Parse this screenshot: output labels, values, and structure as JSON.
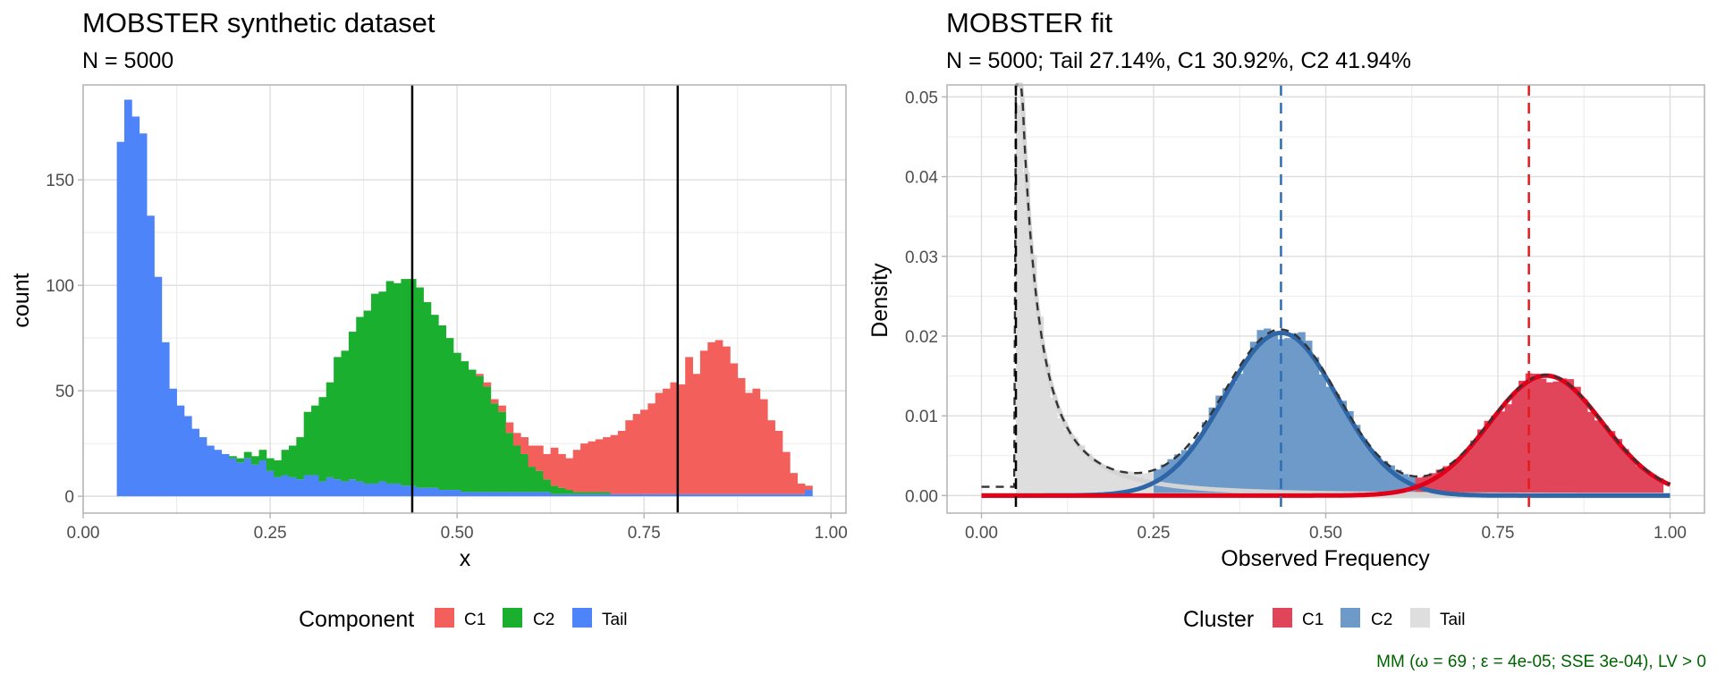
{
  "chart_data": [
    {
      "type": "bar",
      "title": "MOBSTER synthetic dataset",
      "subtitle": "N = 5000",
      "xlabel": "x",
      "ylabel": "count",
      "xlim": [
        0,
        1.02
      ],
      "ylim": [
        -8,
        195
      ],
      "xticks": [
        0,
        0.25,
        0.5,
        0.75,
        1
      ],
      "xtick_labels": [
        "0.00",
        "0.25",
        "0.50",
        "0.75",
        "1.00"
      ],
      "yticks": [
        0,
        50,
        100,
        150
      ],
      "ytick_labels": [
        "0",
        "50",
        "100",
        "150"
      ],
      "bin_width": 0.01,
      "legend_title": "Component",
      "legend_position": "bottom",
      "vlines": [
        0.44,
        0.795
      ],
      "series": [
        {
          "name": "C1",
          "color": "#F35F5B",
          "x": [
            0.53,
            0.54,
            0.55,
            0.56,
            0.57,
            0.58,
            0.59,
            0.6,
            0.61,
            0.62,
            0.63,
            0.64,
            0.65,
            0.66,
            0.67,
            0.68,
            0.69,
            0.7,
            0.71,
            0.72,
            0.73,
            0.74,
            0.75,
            0.76,
            0.77,
            0.78,
            0.79,
            0.8,
            0.81,
            0.82,
            0.83,
            0.84,
            0.85,
            0.86,
            0.87,
            0.88,
            0.89,
            0.9,
            0.91,
            0.92,
            0.93,
            0.94,
            0.95,
            0.96,
            0.97
          ],
          "values": [
            1,
            2,
            2,
            3,
            5,
            6,
            8,
            10,
            12,
            12,
            18,
            16,
            15,
            20,
            23,
            24,
            25,
            26,
            28,
            30,
            35,
            38,
            40,
            43,
            48,
            50,
            53,
            52,
            65,
            57,
            68,
            72,
            73,
            70,
            62,
            55,
            48,
            50,
            45,
            35,
            30,
            20,
            10,
            5,
            2
          ]
        },
        {
          "name": "C2",
          "color": "#1AAF2E",
          "x": [
            0.2,
            0.21,
            0.22,
            0.23,
            0.24,
            0.25,
            0.26,
            0.27,
            0.28,
            0.29,
            0.3,
            0.31,
            0.32,
            0.33,
            0.34,
            0.35,
            0.36,
            0.37,
            0.38,
            0.39,
            0.4,
            0.41,
            0.42,
            0.43,
            0.44,
            0.45,
            0.46,
            0.47,
            0.48,
            0.49,
            0.5,
            0.51,
            0.52,
            0.53,
            0.54,
            0.55,
            0.56,
            0.57,
            0.58,
            0.59,
            0.6,
            0.61,
            0.62,
            0.63,
            0.64,
            0.65,
            0.66,
            0.67,
            0.68,
            0.69,
            0.7
          ],
          "values": [
            1,
            2,
            3,
            4,
            5,
            6,
            8,
            12,
            15,
            20,
            30,
            33,
            40,
            45,
            58,
            62,
            70,
            78,
            82,
            90,
            90,
            96,
            95,
            98,
            98,
            95,
            88,
            82,
            78,
            72,
            65,
            62,
            58,
            55,
            50,
            42,
            38,
            28,
            22,
            18,
            12,
            10,
            6,
            4,
            3,
            2,
            1,
            1,
            1,
            1,
            1
          ]
        },
        {
          "name": "Tail",
          "color": "#4E84FA",
          "x": [
            0.05,
            0.06,
            0.07,
            0.08,
            0.09,
            0.1,
            0.11,
            0.12,
            0.13,
            0.14,
            0.15,
            0.16,
            0.17,
            0.18,
            0.19,
            0.2,
            0.21,
            0.22,
            0.23,
            0.24,
            0.25,
            0.26,
            0.27,
            0.28,
            0.29,
            0.3,
            0.31,
            0.32,
            0.33,
            0.34,
            0.35,
            0.36,
            0.37,
            0.38,
            0.39,
            0.4,
            0.41,
            0.42,
            0.43,
            0.44,
            0.45,
            0.46,
            0.47,
            0.48,
            0.49,
            0.5,
            0.51,
            0.52,
            0.53,
            0.54,
            0.55,
            0.56,
            0.57,
            0.58,
            0.59,
            0.6,
            0.61,
            0.62,
            0.63,
            0.64,
            0.65,
            0.66,
            0.67,
            0.68,
            0.69,
            0.7,
            0.71,
            0.72,
            0.73,
            0.74,
            0.75,
            0.76,
            0.77,
            0.78,
            0.79,
            0.8,
            0.81,
            0.82,
            0.83,
            0.84,
            0.85,
            0.86,
            0.87,
            0.88,
            0.89,
            0.9,
            0.91,
            0.92,
            0.93,
            0.94,
            0.95,
            0.96,
            0.97
          ],
          "values": [
            168,
            188,
            180,
            172,
            133,
            104,
            73,
            51,
            43,
            38,
            32,
            28,
            24,
            22,
            20,
            18,
            16,
            18,
            15,
            17,
            12,
            9,
            10,
            9,
            8,
            10,
            10,
            7,
            9,
            8,
            7,
            8,
            7,
            6,
            6,
            7,
            6,
            6,
            5,
            5,
            4,
            4,
            4,
            3,
            3,
            3,
            2,
            2,
            2,
            2,
            2,
            2,
            2,
            2,
            2,
            2,
            2,
            2,
            1,
            1,
            1,
            1,
            1,
            1,
            1,
            1,
            1,
            1,
            1,
            1,
            1,
            1,
            1,
            1,
            1,
            1,
            1,
            1,
            1,
            1,
            1,
            1,
            1,
            1,
            1,
            1,
            1,
            1,
            1,
            1,
            1,
            1,
            3
          ]
        }
      ]
    },
    {
      "type": "bar",
      "title": "MOBSTER fit",
      "subtitle": "N = 5000; Tail 27.14%, C1 30.92%, C2 41.94%",
      "xlabel": "Observed Frequency",
      "ylabel": "Density",
      "xlim": [
        -0.05,
        1.05
      ],
      "ylim": [
        -0.0022,
        0.0515
      ],
      "xticks": [
        0,
        0.25,
        0.5,
        0.75,
        1
      ],
      "xtick_labels": [
        "0.00",
        "0.25",
        "0.50",
        "0.75",
        "1.00"
      ],
      "yticks": [
        0,
        0.01,
        0.02,
        0.03,
        0.04,
        0.05
      ],
      "ytick_labels": [
        "0.00",
        "0.01",
        "0.02",
        "0.03",
        "0.04",
        "0.05"
      ],
      "bin_width": 0.01,
      "legend_title": "Cluster",
      "legend_position": "bottom",
      "vlines": [
        {
          "x": 0.05,
          "color": "#000000"
        },
        {
          "x": 0.435,
          "color": "#2E6DB4"
        },
        {
          "x": 0.795,
          "color": "#E41A1C"
        }
      ],
      "series": [
        {
          "name": "C1",
          "color": "#E0455A",
          "line_color": "#E0001A",
          "weight": 0.3092,
          "mean": 0.82,
          "sd": 0.082
        },
        {
          "name": "C2",
          "color": "#6D9AC8",
          "line_color": "#2F66A7",
          "weight": 0.4194,
          "mean": 0.435,
          "sd": 0.082
        },
        {
          "name": "Tail",
          "color": "#DEDEDE",
          "line_color": "#D4D4D4",
          "weight": 0.2714,
          "shape": 1.4,
          "scale": 0.05
        }
      ],
      "mixture_line": {
        "color": "#333333",
        "dashed": true
      }
    }
  ],
  "caption": "MM (ω = 69 ; ε = 4e-05; SSE 3e-04), LV > 0"
}
